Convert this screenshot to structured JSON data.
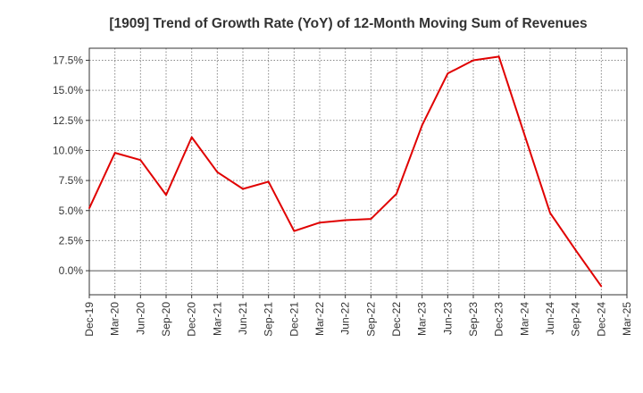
{
  "chart_data": {
    "type": "line",
    "title": "[1909]  Trend of Growth Rate (YoY) of 12-Month Moving Sum of Revenues",
    "xlabel": "",
    "ylabel": "",
    "x_tick_labels": [
      "Dec-19",
      "Mar-20",
      "Jun-20",
      "Sep-20",
      "Dec-20",
      "Mar-21",
      "Jun-21",
      "Sep-21",
      "Dec-21",
      "Mar-22",
      "Jun-22",
      "Sep-22",
      "Dec-22",
      "Mar-23",
      "Jun-23",
      "Sep-23",
      "Dec-23",
      "Mar-24",
      "Jun-24",
      "Sep-24",
      "Dec-24",
      "Mar-25"
    ],
    "y_ticks": [
      0,
      2.5,
      5,
      7.5,
      10,
      12.5,
      15,
      17.5
    ],
    "y_tick_labels": [
      "0.0%",
      "2.5%",
      "5.0%",
      "7.5%",
      "10.0%",
      "12.5%",
      "15.0%",
      "17.5%"
    ],
    "ylim": [
      -2.0,
      18.5
    ],
    "grid": true,
    "series": [
      {
        "color": "#e00000",
        "x": [
          "Dec-19",
          "Mar-20",
          "Jun-20",
          "Sep-20",
          "Dec-20",
          "Mar-21",
          "Jun-21",
          "Sep-21",
          "Dec-21",
          "Mar-22",
          "Jun-22",
          "Sep-22",
          "Dec-22",
          "Mar-23",
          "Jun-23",
          "Sep-23",
          "Dec-23",
          "Mar-24",
          "Jun-24",
          "Sep-24",
          "Dec-24"
        ],
        "values": [
          5.2,
          9.8,
          9.2,
          6.3,
          11.1,
          8.2,
          6.8,
          7.4,
          3.3,
          4.0,
          4.2,
          4.3,
          6.4,
          12.1,
          16.4,
          17.5,
          17.8,
          11.3,
          4.8,
          1.7,
          -1.3
        ]
      }
    ]
  }
}
